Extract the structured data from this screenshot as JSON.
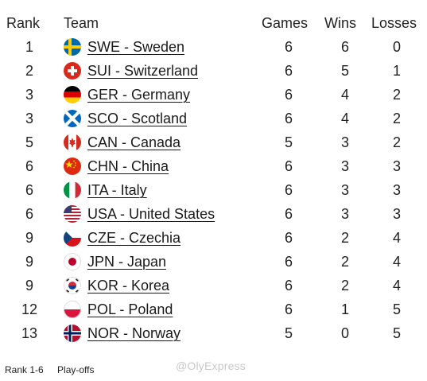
{
  "table": {
    "headers": {
      "rank": "Rank",
      "team": "Team",
      "games": "Games",
      "wins": "Wins",
      "losses": "Losses"
    },
    "rows": [
      {
        "rank": "1",
        "team": "SWE - Sweden",
        "games": "6",
        "wins": "6",
        "losses": "0",
        "flag": "sweden-flag-icon"
      },
      {
        "rank": "2",
        "team": "SUI - Switzerland",
        "games": "6",
        "wins": "5",
        "losses": "1",
        "flag": "switzerland-flag-icon"
      },
      {
        "rank": "3",
        "team": "GER - Germany",
        "games": "6",
        "wins": "4",
        "losses": "2",
        "flag": "germany-flag-icon"
      },
      {
        "rank": "3",
        "team": "SCO - Scotland",
        "games": "6",
        "wins": "4",
        "losses": "2",
        "flag": "scotland-flag-icon"
      },
      {
        "rank": "5",
        "team": "CAN - Canada",
        "games": "5",
        "wins": "3",
        "losses": "2",
        "flag": "canada-flag-icon"
      },
      {
        "rank": "6",
        "team": "CHN - China",
        "games": "6",
        "wins": "3",
        "losses": "3",
        "flag": "china-flag-icon"
      },
      {
        "rank": "6",
        "team": "ITA - Italy",
        "games": "6",
        "wins": "3",
        "losses": "3",
        "flag": "italy-flag-icon"
      },
      {
        "rank": "6",
        "team": "USA - United States",
        "games": "6",
        "wins": "3",
        "losses": "3",
        "flag": "usa-flag-icon"
      },
      {
        "rank": "9",
        "team": "CZE - Czechia",
        "games": "6",
        "wins": "2",
        "losses": "4",
        "flag": "czechia-flag-icon"
      },
      {
        "rank": "9",
        "team": "JPN - Japan",
        "games": "6",
        "wins": "2",
        "losses": "4",
        "flag": "japan-flag-icon"
      },
      {
        "rank": "9",
        "team": "KOR - Korea",
        "games": "6",
        "wins": "2",
        "losses": "4",
        "flag": "korea-flag-icon"
      },
      {
        "rank": "12",
        "team": "POL - Poland",
        "games": "6",
        "wins": "1",
        "losses": "5",
        "flag": "poland-flag-icon"
      },
      {
        "rank": "13",
        "team": "NOR - Norway",
        "games": "5",
        "wins": "0",
        "losses": "5",
        "flag": "norway-flag-icon"
      }
    ]
  },
  "footer": {
    "legend_rank": "Rank 1-6",
    "legend_label": "Play-offs"
  },
  "watermark": "@OlyExpress"
}
